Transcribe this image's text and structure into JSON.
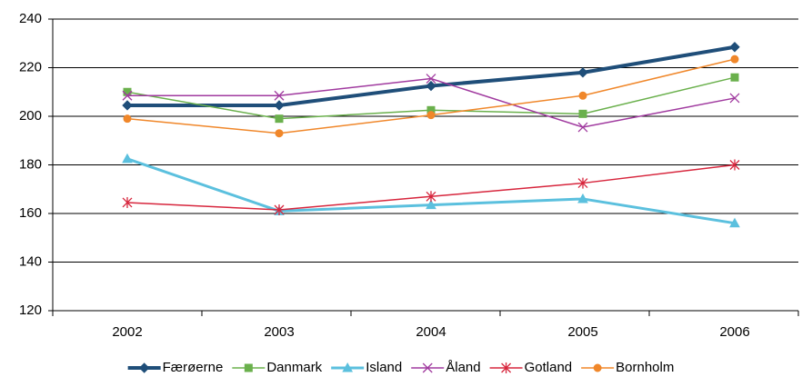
{
  "chart_data": {
    "type": "line",
    "categories": [
      "2002",
      "2003",
      "2004",
      "2005",
      "2006"
    ],
    "series": [
      {
        "name": "Færøerne",
        "color": "#1f4e79",
        "marker": "diamond",
        "values": [
          204.5,
          204.5,
          212.5,
          218,
          228.5
        ]
      },
      {
        "name": "Danmark",
        "color": "#6ab04c",
        "marker": "square",
        "values": [
          210,
          199,
          202.5,
          201,
          216
        ]
      },
      {
        "name": "Island",
        "color": "#5bc0de",
        "marker": "triangle",
        "values": [
          182.5,
          161,
          163.5,
          166,
          156
        ]
      },
      {
        "name": "Åland",
        "color": "#a03a9f",
        "marker": "x",
        "values": [
          208.5,
          208.5,
          215.5,
          195.5,
          207.5
        ]
      },
      {
        "name": "Gotland",
        "color": "#d7263d",
        "marker": "star",
        "values": [
          164.5,
          161.5,
          167,
          172.5,
          180
        ]
      },
      {
        "name": "Bornholm",
        "color": "#f0872a",
        "marker": "circle",
        "values": [
          199,
          193,
          200.5,
          208.5,
          223.5
        ]
      }
    ],
    "ylim": [
      120,
      240
    ],
    "yticks": [
      120,
      140,
      160,
      180,
      200,
      220,
      240
    ],
    "grid": true,
    "legend": "bottom"
  }
}
